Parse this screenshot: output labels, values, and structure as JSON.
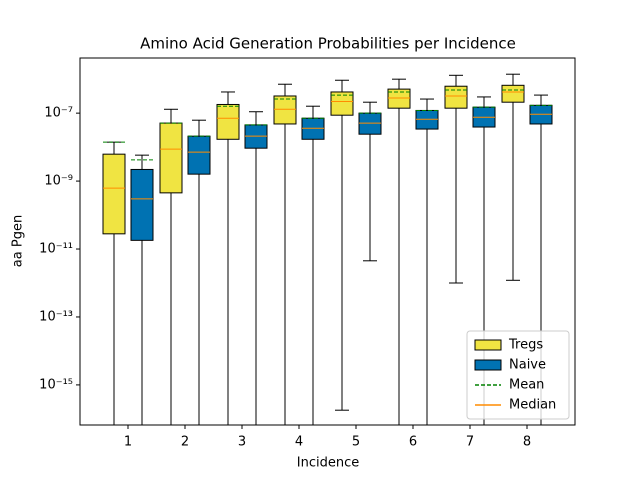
{
  "chart_data": {
    "type": "box",
    "title": "Amino Acid Generation Probabilities per Incidence",
    "xlabel": "Incidence",
    "ylabel": "aa Pgen",
    "categories": [
      "1",
      "2",
      "3",
      "4",
      "5",
      "6",
      "7",
      "8"
    ],
    "log_scale": true,
    "ylim": [
      6.6e-17,
      4.2e-06
    ],
    "yticks": [
      {
        "value": 1e-15,
        "label": "10⁻¹⁵"
      },
      {
        "value": 1e-13,
        "label": "10⁻¹³"
      },
      {
        "value": 1e-11,
        "label": "10⁻¹¹"
      },
      {
        "value": 1e-09,
        "label": "10⁻⁹"
      },
      {
        "value": 1e-07,
        "label": "10⁻⁷"
      }
    ],
    "legend": "lower right",
    "mean_label": "Mean",
    "mean_color": "#008000",
    "median_label": "Median",
    "median_color": "#ff8c00",
    "series": [
      {
        "name": "Tregs",
        "color": "#f0e442",
        "whislo": [
          1e-17,
          1e-17,
          1e-17,
          1e-17,
          1.8e-16,
          1e-17,
          1e-12,
          1.2e-12
        ],
        "q1": [
          2.8e-11,
          4.5e-10,
          1.7e-08,
          4.8e-08,
          8.7e-08,
          1.4e-07,
          1.4e-07,
          2.1e-07
        ],
        "median": [
          6.2e-10,
          8.7e-09,
          7.1e-08,
          1.3e-07,
          2.2e-07,
          2.8e-07,
          3.2e-07,
          4.2e-07
        ],
        "q3": [
          6.2e-09,
          5.1e-08,
          1.8e-07,
          3.2e-07,
          4.2e-07,
          5.1e-07,
          6.2e-07,
          6.6e-07
        ],
        "whishi": [
          1.4e-08,
          1.3e-07,
          4.2e-07,
          7.1e-07,
          9.3e-07,
          1e-06,
          1.3e-06,
          1.4e-06
        ],
        "mean": [
          1.4e-08,
          5.1e-08,
          1.6e-07,
          2.6e-07,
          3.4e-07,
          4.2e-07,
          4.8e-07,
          4.8e-07
        ]
      },
      {
        "name": "Naive",
        "color": "#0072b2",
        "whislo": [
          1e-17,
          1e-17,
          1e-17,
          1e-17,
          4.5e-12,
          1e-17,
          1e-17,
          1e-17
        ],
        "q1": [
          1.8e-11,
          1.6e-09,
          9.3e-09,
          1.7e-08,
          2.4e-08,
          3.4e-08,
          3.9e-08,
          4.8e-08
        ],
        "median": [
          3e-10,
          7.1e-09,
          2.1e-08,
          3.6e-08,
          5.1e-08,
          6.6e-08,
          7.6e-08,
          9.3e-08
        ],
        "q3": [
          2.2e-09,
          2.1e-08,
          4.5e-08,
          7.1e-08,
          1e-07,
          1.2e-07,
          1.5e-07,
          1.7e-07
        ],
        "whishi": [
          5.8e-09,
          6.2e-08,
          1.1e-07,
          1.6e-07,
          2.1e-07,
          2.6e-07,
          3e-07,
          3.4e-07
        ],
        "mean": [
          4.2e-09,
          2.1e-08,
          4.5e-08,
          7.1e-08,
          1e-07,
          1.2e-07,
          1.5e-07,
          1.7e-07
        ]
      }
    ]
  }
}
